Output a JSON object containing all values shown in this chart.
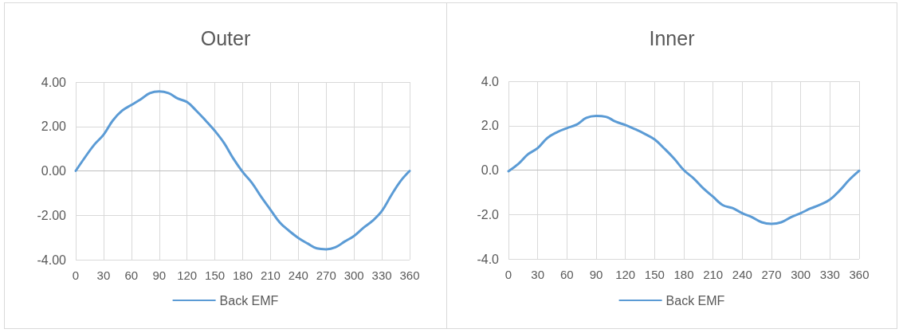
{
  "chart_data": [
    {
      "type": "line",
      "title": "Outer",
      "x": [
        0,
        10,
        20,
        30,
        40,
        50,
        60,
        70,
        80,
        90,
        100,
        110,
        120,
        130,
        140,
        150,
        160,
        170,
        180,
        190,
        200,
        210,
        220,
        230,
        240,
        250,
        260,
        270,
        280,
        290,
        300,
        310,
        320,
        330,
        340,
        350,
        360
      ],
      "series": [
        {
          "name": "Back EMF",
          "color": "#5b9bd5",
          "values": [
            0,
            0.61,
            1.18,
            1.63,
            2.27,
            2.71,
            2.97,
            3.22,
            3.5,
            3.58,
            3.5,
            3.26,
            3.1,
            2.71,
            2.27,
            1.8,
            1.25,
            0.55,
            -0.05,
            -0.54,
            -1.17,
            -1.75,
            -2.32,
            -2.7,
            -3.02,
            -3.27,
            -3.49,
            -3.53,
            -3.44,
            -3.18,
            -2.93,
            -2.57,
            -2.25,
            -1.81,
            -1.11,
            -0.47,
            0
          ]
        }
      ],
      "xlim": [
        0,
        360
      ],
      "xticks": [
        0,
        30,
        60,
        90,
        120,
        150,
        180,
        210,
        240,
        270,
        300,
        330,
        360
      ],
      "ylim": [
        -4,
        4
      ],
      "yticks": [
        {
          "value": -4,
          "label": "-4.00"
        },
        {
          "value": -2,
          "label": "-2.00"
        },
        {
          "value": 0,
          "label": "0.00"
        },
        {
          "value": 2,
          "label": "2.00"
        },
        {
          "value": 4,
          "label": "4.00"
        }
      ],
      "grid": true,
      "legend": "bottom",
      "marker": "none"
    },
    {
      "type": "line",
      "title": "Inner",
      "x": [
        0,
        10,
        20,
        30,
        40,
        50,
        60,
        70,
        80,
        90,
        100,
        110,
        120,
        130,
        140,
        150,
        160,
        170,
        180,
        190,
        200,
        210,
        220,
        230,
        240,
        250,
        260,
        270,
        280,
        290,
        300,
        310,
        320,
        330,
        340,
        350,
        360
      ],
      "series": [
        {
          "name": "Back EMF",
          "color": "#5b9bd5",
          "values": [
            -0.05,
            0.27,
            0.71,
            0.99,
            1.45,
            1.71,
            1.89,
            2.05,
            2.35,
            2.44,
            2.4,
            2.18,
            2.03,
            1.84,
            1.63,
            1.38,
            0.97,
            0.52,
            0,
            -0.37,
            -0.82,
            -1.2,
            -1.58,
            -1.71,
            -1.94,
            -2.12,
            -2.35,
            -2.42,
            -2.35,
            -2.12,
            -1.94,
            -1.73,
            -1.56,
            -1.33,
            -0.92,
            -0.43,
            -0.03
          ]
        }
      ],
      "xlim": [
        0,
        360
      ],
      "xticks": [
        0,
        30,
        60,
        90,
        120,
        150,
        180,
        210,
        240,
        270,
        300,
        330,
        360
      ],
      "ylim": [
        -4,
        4
      ],
      "yticks": [
        {
          "value": -4,
          "label": "-4.0"
        },
        {
          "value": -2,
          "label": "-2.0"
        },
        {
          "value": 0,
          "label": "0.0"
        },
        {
          "value": 2,
          "label": "2.0"
        },
        {
          "value": 4,
          "label": "4.0"
        }
      ],
      "grid": true,
      "legend": "bottom",
      "marker": "none"
    }
  ]
}
